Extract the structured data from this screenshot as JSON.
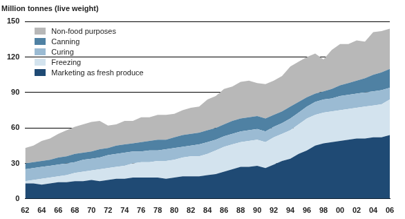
{
  "chart_data": {
    "type": "stacked_area",
    "ylabel": "Million tonnes (live weight)",
    "categories": [
      "62",
      null,
      "64",
      null,
      "66",
      null,
      "68",
      null,
      "70",
      null,
      "72",
      null,
      "74",
      null,
      "76",
      null,
      "78",
      null,
      "80",
      null,
      "82",
      null,
      "84",
      null,
      "86",
      null,
      "88",
      null,
      "90",
      null,
      "92",
      null,
      "94",
      null,
      "96",
      null,
      "98",
      null,
      "00",
      null,
      "02",
      null,
      "04",
      null,
      "06"
    ],
    "series": [
      {
        "name": "Marketing as fresh produce",
        "color": "#1f4a74",
        "values": [
          13,
          13,
          12,
          13,
          14,
          14,
          15,
          15,
          16,
          15,
          16,
          17,
          17,
          18,
          18,
          18,
          18,
          17,
          18,
          19,
          19,
          19,
          20,
          21,
          23,
          25,
          27,
          27,
          28,
          26,
          29,
          32,
          34,
          38,
          41,
          45,
          47,
          48,
          49,
          50,
          51,
          51,
          52,
          52,
          54
        ]
      },
      {
        "name": "Freezing",
        "color": "#d3e3ee",
        "values": [
          2,
          3,
          5,
          5,
          5,
          6,
          7,
          8,
          8,
          10,
          10,
          10,
          11,
          12,
          13,
          13,
          14,
          15,
          15,
          16,
          17,
          17,
          18,
          20,
          21,
          21,
          21,
          22,
          22,
          22,
          23,
          23,
          24,
          25,
          27,
          26,
          26,
          26,
          26,
          26,
          26,
          27,
          27,
          28,
          30
        ]
      },
      {
        "name": "Curing",
        "color": "#9bbbd3",
        "values": [
          10,
          10,
          10,
          10,
          10,
          10,
          9,
          10,
          10,
          10,
          11,
          11,
          11,
          10,
          9,
          10,
          9,
          10,
          10,
          9,
          9,
          10,
          10,
          9,
          9,
          9,
          9,
          9,
          9,
          9,
          9,
          9,
          10,
          10,
          10,
          11,
          11,
          11,
          12,
          12,
          12,
          12,
          12,
          12,
          10
        ]
      },
      {
        "name": "Canning",
        "color": "#4f81a3",
        "values": [
          5,
          5,
          5,
          5,
          6,
          6,
          7,
          6,
          6,
          7,
          6,
          7,
          7,
          7,
          8,
          8,
          9,
          8,
          9,
          10,
          10,
          10,
          10,
          10,
          10,
          11,
          11,
          11,
          11,
          11,
          10,
          10,
          10,
          9,
          8,
          7,
          7,
          8,
          9,
          10,
          11,
          12,
          14,
          15,
          16
        ]
      },
      {
        "name": "Non-food purposes",
        "color": "#b8b8b8",
        "values": [
          13,
          14,
          17,
          18,
          20,
          22,
          23,
          24,
          25,
          24,
          19,
          18,
          20,
          19,
          21,
          20,
          21,
          21,
          20,
          21,
          22,
          22,
          26,
          27,
          30,
          29,
          31,
          31,
          28,
          29,
          29,
          30,
          34,
          34,
          34,
          34,
          27,
          33,
          35,
          33,
          34,
          31,
          36,
          35,
          34
        ]
      }
    ],
    "stacked": true,
    "ylim": [
      0,
      150
    ],
    "yticks": [
      0,
      30,
      60,
      90,
      120,
      150
    ],
    "grid": true,
    "legend": "top-left"
  }
}
